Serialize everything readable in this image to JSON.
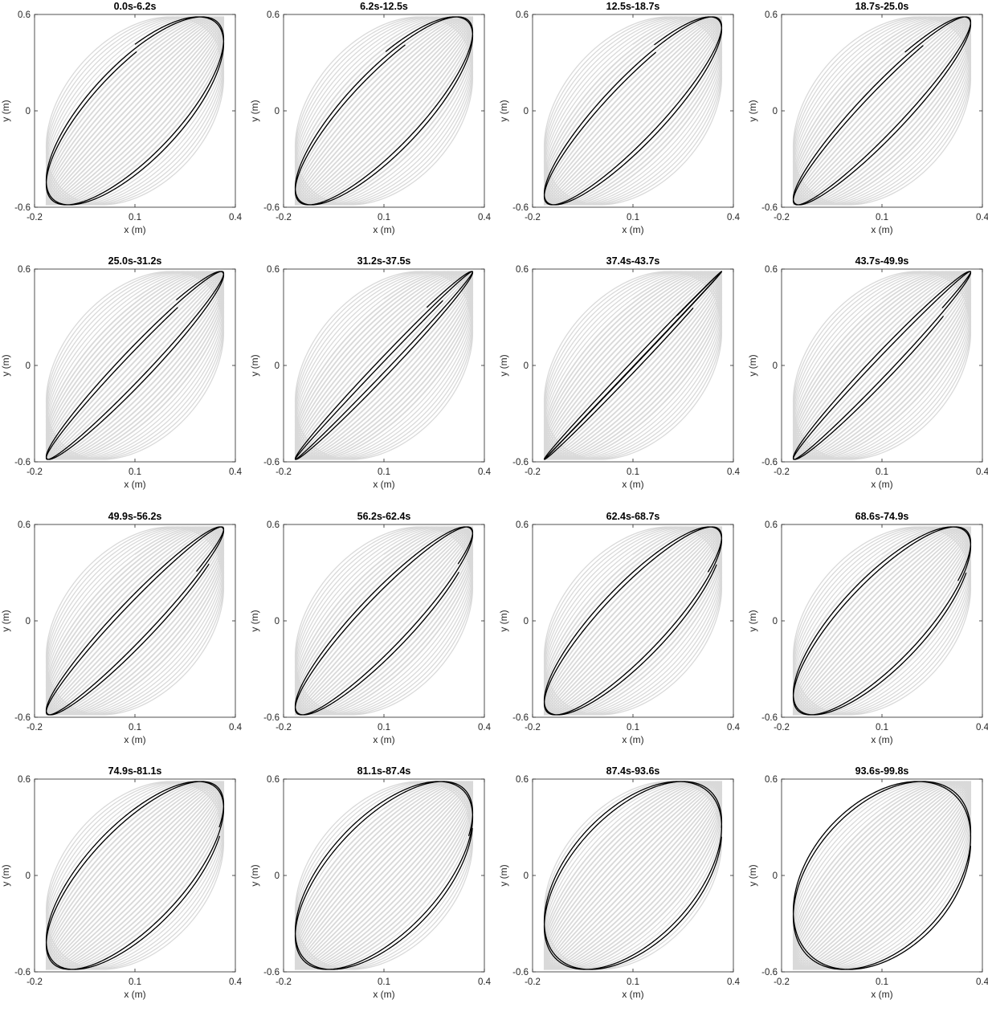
{
  "figure": {
    "xlabel": "x (m)",
    "ylabel": "y (m)",
    "xticks": [
      "-0.2",
      "0.1",
      "0.4"
    ],
    "yticks": [
      "0.6",
      "0",
      "-0.6"
    ],
    "background_color": "#d9d9d9",
    "highlight_color": "#000000"
  },
  "chart_data": [
    {
      "type": "line",
      "title": "0.0s-6.2s",
      "xlabel": "x (m)",
      "ylabel": "y (m)",
      "xlim": [
        -0.2,
        0.4
      ],
      "ylim": [
        -0.6,
        0.6
      ],
      "t_start": 0.0,
      "t_end": 6.2
    },
    {
      "type": "line",
      "title": "6.2s-12.5s",
      "xlabel": "x (m)",
      "ylabel": "y (m)",
      "xlim": [
        -0.2,
        0.4
      ],
      "ylim": [
        -0.6,
        0.6
      ],
      "t_start": 6.2,
      "t_end": 12.5
    },
    {
      "type": "line",
      "title": "12.5s-18.7s",
      "xlabel": "x (m)",
      "ylabel": "y (m)",
      "xlim": [
        -0.2,
        0.4
      ],
      "ylim": [
        -0.6,
        0.6
      ],
      "t_start": 12.5,
      "t_end": 18.7
    },
    {
      "type": "line",
      "title": "18.7s-25.0s",
      "xlabel": "x (m)",
      "ylabel": "y (m)",
      "xlim": [
        -0.2,
        0.4
      ],
      "ylim": [
        -0.6,
        0.6
      ],
      "t_start": 18.7,
      "t_end": 25.0
    },
    {
      "type": "line",
      "title": "25.0s-31.2s",
      "xlabel": "x (m)",
      "ylabel": "y (m)",
      "xlim": [
        -0.2,
        0.4
      ],
      "ylim": [
        -0.6,
        0.6
      ],
      "t_start": 25.0,
      "t_end": 31.2
    },
    {
      "type": "line",
      "title": "31.2s-37.5s",
      "xlabel": "x (m)",
      "ylabel": "y (m)",
      "xlim": [
        -0.2,
        0.4
      ],
      "ylim": [
        -0.6,
        0.6
      ],
      "t_start": 31.2,
      "t_end": 37.5
    },
    {
      "type": "line",
      "title": "37.4s-43.7s",
      "xlabel": "x (m)",
      "ylabel": "y (m)",
      "xlim": [
        -0.2,
        0.4
      ],
      "ylim": [
        -0.6,
        0.6
      ],
      "t_start": 37.4,
      "t_end": 43.7
    },
    {
      "type": "line",
      "title": "43.7s-49.9s",
      "xlabel": "x (m)",
      "ylabel": "y (m)",
      "xlim": [
        -0.2,
        0.4
      ],
      "ylim": [
        -0.6,
        0.6
      ],
      "t_start": 43.7,
      "t_end": 49.9
    },
    {
      "type": "line",
      "title": "49.9s-56.2s",
      "xlabel": "x (m)",
      "ylabel": "y (m)",
      "xlim": [
        -0.2,
        0.4
      ],
      "ylim": [
        -0.6,
        0.6
      ],
      "t_start": 49.9,
      "t_end": 56.2
    },
    {
      "type": "line",
      "title": "56.2s-62.4s",
      "xlabel": "x (m)",
      "ylabel": "y (m)",
      "xlim": [
        -0.2,
        0.4
      ],
      "ylim": [
        -0.6,
        0.6
      ],
      "t_start": 56.2,
      "t_end": 62.4
    },
    {
      "type": "line",
      "title": "62.4s-68.7s",
      "xlabel": "x (m)",
      "ylabel": "y (m)",
      "xlim": [
        -0.2,
        0.4
      ],
      "ylim": [
        -0.6,
        0.6
      ],
      "t_start": 62.4,
      "t_end": 68.7
    },
    {
      "type": "line",
      "title": "68.6s-74.9s",
      "xlabel": "x (m)",
      "ylabel": "y (m)",
      "xlim": [
        -0.2,
        0.4
      ],
      "ylim": [
        -0.6,
        0.6
      ],
      "t_start": 68.6,
      "t_end": 74.9
    },
    {
      "type": "line",
      "title": "74.9s-81.1s",
      "xlabel": "x (m)",
      "ylabel": "y (m)",
      "xlim": [
        -0.2,
        0.4
      ],
      "ylim": [
        -0.6,
        0.6
      ],
      "t_start": 74.9,
      "t_end": 81.1
    },
    {
      "type": "line",
      "title": "81.1s-87.4s",
      "xlabel": "x (m)",
      "ylabel": "y (m)",
      "xlim": [
        -0.2,
        0.4
      ],
      "ylim": [
        -0.6,
        0.6
      ],
      "t_start": 81.1,
      "t_end": 87.4
    },
    {
      "type": "line",
      "title": "87.4s-93.6s",
      "xlabel": "x (m)",
      "ylabel": "y (m)",
      "xlim": [
        -0.2,
        0.4
      ],
      "ylim": [
        -0.6,
        0.6
      ],
      "t_start": 87.4,
      "t_end": 93.6
    },
    {
      "type": "line",
      "title": "93.6s-99.8s",
      "xlabel": "x (m)",
      "ylabel": "y (m)",
      "xlim": [
        -0.2,
        0.4
      ],
      "ylim": [
        -0.6,
        0.6
      ],
      "t_start": 93.6,
      "t_end": 99.8
    }
  ]
}
